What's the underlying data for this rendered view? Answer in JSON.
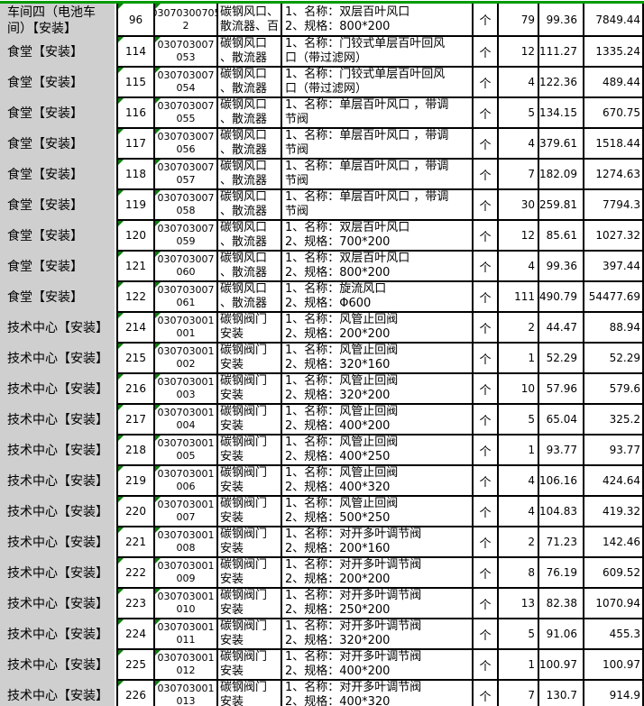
{
  "colors": {
    "accent_green": "#009b00",
    "error_triangle_green": "#0e7d0e",
    "panel_gray": "#cfcfcf",
    "grid_border": "#000000",
    "cell_background": "#ffffff"
  },
  "table": {
    "columns": [
      "group",
      "no",
      "code",
      "name",
      "description",
      "unit",
      "qty",
      "price",
      "total"
    ],
    "rows": [
      {
        "group_lines": [
          "车间四（电池车",
          "间）【安装】"
        ],
        "no": "96",
        "code_lines": [
          "03070300705",
          "2"
        ],
        "name_lines": [
          "碳钢风口、",
          "散流器、百"
        ],
        "desc_lines": [
          "1、名称：双层百叶风口",
          "2、规格：800*200"
        ],
        "unit": "个",
        "qty": "79",
        "price": "99.36",
        "total": "7849.44"
      },
      {
        "group_lines": [
          "食堂【安装】"
        ],
        "no": "114",
        "code_lines": [
          "030703007",
          "053"
        ],
        "name_lines": [
          "碳钢风口",
          "、散流器"
        ],
        "desc_lines": [
          "1、名称：门铰式单层百叶回风",
          "口（带过滤网）"
        ],
        "unit": "个",
        "qty": "12",
        "price": "111.27",
        "total": "1335.24"
      },
      {
        "group_lines": [
          "食堂【安装】"
        ],
        "no": "115",
        "code_lines": [
          "030703007",
          "054"
        ],
        "name_lines": [
          "碳钢风口",
          "、散流器"
        ],
        "desc_lines": [
          "1、名称：门铰式单层百叶回风",
          "口（带过滤网）"
        ],
        "unit": "个",
        "qty": "4",
        "price": "122.36",
        "total": "489.44"
      },
      {
        "group_lines": [
          "食堂【安装】"
        ],
        "no": "116",
        "code_lines": [
          "030703007",
          "055"
        ],
        "name_lines": [
          "碳钢风口",
          "、散流器"
        ],
        "desc_lines": [
          "1、名称：单层百叶风口 ，带调",
          "节阀"
        ],
        "unit": "个",
        "qty": "5",
        "price": "134.15",
        "total": "670.75"
      },
      {
        "group_lines": [
          "食堂【安装】"
        ],
        "no": "117",
        "code_lines": [
          "030703007",
          "056"
        ],
        "name_lines": [
          "碳钢风口",
          "、散流器"
        ],
        "desc_lines": [
          "1、名称：单层百叶风口 ，带调",
          "节阀"
        ],
        "unit": "个",
        "qty": "4",
        "price": "379.61",
        "total": "1518.44"
      },
      {
        "group_lines": [
          "食堂【安装】"
        ],
        "no": "118",
        "code_lines": [
          "030703007",
          "057"
        ],
        "name_lines": [
          "碳钢风口",
          "、散流器"
        ],
        "desc_lines": [
          "1、名称：单层百叶风口 ，带调",
          "节阀"
        ],
        "unit": "个",
        "qty": "7",
        "price": "182.09",
        "total": "1274.63"
      },
      {
        "group_lines": [
          "食堂【安装】"
        ],
        "no": "119",
        "code_lines": [
          "030703007",
          "058"
        ],
        "name_lines": [
          "碳钢风口",
          "、散流器"
        ],
        "desc_lines": [
          "1、名称：单层百叶风口 ，带调",
          "节阀"
        ],
        "unit": "个",
        "qty": "30",
        "price": "259.81",
        "total": "7794.3"
      },
      {
        "group_lines": [
          "食堂【安装】"
        ],
        "no": "120",
        "code_lines": [
          "030703007",
          "059"
        ],
        "name_lines": [
          "碳钢风口",
          "、散流器"
        ],
        "desc_lines": [
          "1、名称：双层百叶风口",
          "2、规格：700*200"
        ],
        "unit": "个",
        "qty": "12",
        "price": "85.61",
        "total": "1027.32"
      },
      {
        "group_lines": [
          "食堂【安装】"
        ],
        "no": "121",
        "code_lines": [
          "030703007",
          "060"
        ],
        "name_lines": [
          "碳钢风口",
          "、散流器"
        ],
        "desc_lines": [
          "1、名称：双层百叶风口",
          "2、规格：800*200"
        ],
        "unit": "个",
        "qty": "4",
        "price": "99.36",
        "total": "397.44"
      },
      {
        "group_lines": [
          "食堂【安装】"
        ],
        "no": "122",
        "code_lines": [
          "030703007",
          "061"
        ],
        "name_lines": [
          "碳钢风口",
          "、散流器"
        ],
        "desc_lines": [
          "1、名称：旋流风口",
          "2、规格：Φ600"
        ],
        "unit": "个",
        "qty": "111",
        "price": "490.79",
        "total": "54477.69"
      },
      {
        "group_lines": [
          "技术中心【安装】"
        ],
        "no": "214",
        "code_lines": [
          "030703001",
          "001"
        ],
        "name_lines": [
          "碳钢阀门",
          "安装"
        ],
        "desc_lines": [
          "1、名称：风管止回阀",
          "2、规格：200*200"
        ],
        "unit": "个",
        "qty": "2",
        "price": "44.47",
        "total": "88.94"
      },
      {
        "group_lines": [
          "技术中心【安装】"
        ],
        "no": "215",
        "code_lines": [
          "030703001",
          "002"
        ],
        "name_lines": [
          "碳钢阀门",
          "安装"
        ],
        "desc_lines": [
          "1、名称：风管止回阀",
          "2、规格：320*160"
        ],
        "unit": "个",
        "qty": "1",
        "price": "52.29",
        "total": "52.29"
      },
      {
        "group_lines": [
          "技术中心【安装】"
        ],
        "no": "216",
        "code_lines": [
          "030703001",
          "003"
        ],
        "name_lines": [
          "碳钢阀门",
          "安装"
        ],
        "desc_lines": [
          "1、名称：风管止回阀",
          "2、规格：320*200"
        ],
        "unit": "个",
        "qty": "10",
        "price": "57.96",
        "total": "579.6"
      },
      {
        "group_lines": [
          "技术中心【安装】"
        ],
        "no": "217",
        "code_lines": [
          "030703001",
          "004"
        ],
        "name_lines": [
          "碳钢阀门",
          "安装"
        ],
        "desc_lines": [
          "1、名称：风管止回阀",
          "2、规格：400*200"
        ],
        "unit": "个",
        "qty": "5",
        "price": "65.04",
        "total": "325.2"
      },
      {
        "group_lines": [
          "技术中心【安装】"
        ],
        "no": "218",
        "code_lines": [
          "030703001",
          "005"
        ],
        "name_lines": [
          "碳钢阀门",
          "安装"
        ],
        "desc_lines": [
          "1、名称：风管止回阀",
          "2、规格：400*250"
        ],
        "unit": "个",
        "qty": "1",
        "price": "93.77",
        "total": "93.77"
      },
      {
        "group_lines": [
          "技术中心【安装】"
        ],
        "no": "219",
        "code_lines": [
          "030703001",
          "006"
        ],
        "name_lines": [
          "碳钢阀门",
          "安装"
        ],
        "desc_lines": [
          "1、名称：风管止回阀",
          "2、规格：400*320"
        ],
        "unit": "个",
        "qty": "4",
        "price": "106.16",
        "total": "424.64"
      },
      {
        "group_lines": [
          "技术中心【安装】"
        ],
        "no": "220",
        "code_lines": [
          "030703001",
          "007"
        ],
        "name_lines": [
          "碳钢阀门",
          "安装"
        ],
        "desc_lines": [
          "1、名称：风管止回阀",
          "2、规格：500*250"
        ],
        "unit": "个",
        "qty": "4",
        "price": "104.83",
        "total": "419.32"
      },
      {
        "group_lines": [
          "技术中心【安装】"
        ],
        "no": "221",
        "code_lines": [
          "030703001",
          "008"
        ],
        "name_lines": [
          "碳钢阀门",
          "安装"
        ],
        "desc_lines": [
          "1、名称：对开多叶调节阀",
          "2、规格：200*160"
        ],
        "unit": "个",
        "qty": "2",
        "price": "71.23",
        "total": "142.46"
      },
      {
        "group_lines": [
          "技术中心【安装】"
        ],
        "no": "222",
        "code_lines": [
          "030703001",
          "009"
        ],
        "name_lines": [
          "碳钢阀门",
          "安装"
        ],
        "desc_lines": [
          "1、名称：对开多叶调节阀",
          "2、规格：200*200"
        ],
        "unit": "个",
        "qty": "8",
        "price": "76.19",
        "total": "609.52"
      },
      {
        "group_lines": [
          "技术中心【安装】"
        ],
        "no": "223",
        "code_lines": [
          "030703001",
          "010"
        ],
        "name_lines": [
          "碳钢阀门",
          "安装"
        ],
        "desc_lines": [
          "1、名称：对开多叶调节阀",
          "2、规格：250*200"
        ],
        "unit": "个",
        "qty": "13",
        "price": "82.38",
        "total": "1070.94"
      },
      {
        "group_lines": [
          "技术中心【安装】"
        ],
        "no": "224",
        "code_lines": [
          "030703001",
          "011"
        ],
        "name_lines": [
          "碳钢阀门",
          "安装"
        ],
        "desc_lines": [
          "1、名称：对开多叶调节阀",
          "2、规格：320*200"
        ],
        "unit": "个",
        "qty": "5",
        "price": "91.06",
        "total": "455.3"
      },
      {
        "group_lines": [
          "技术中心【安装】"
        ],
        "no": "225",
        "code_lines": [
          "030703001",
          "012"
        ],
        "name_lines": [
          "碳钢阀门",
          "安装"
        ],
        "desc_lines": [
          "1、名称：对开多叶调节阀",
          "2、规格：400*200"
        ],
        "unit": "个",
        "qty": "1",
        "price": "100.97",
        "total": "100.97"
      },
      {
        "group_lines": [
          "技术中心【安装】"
        ],
        "no": "226",
        "code_lines": [
          "030703001",
          "013"
        ],
        "name_lines": [
          "碳钢阀门",
          "安装"
        ],
        "desc_lines": [
          "1、名称：对开多叶调节阀",
          "2、规格：400*320"
        ],
        "unit": "个",
        "qty": "7",
        "price": "130.7",
        "total": "914.9"
      }
    ]
  }
}
